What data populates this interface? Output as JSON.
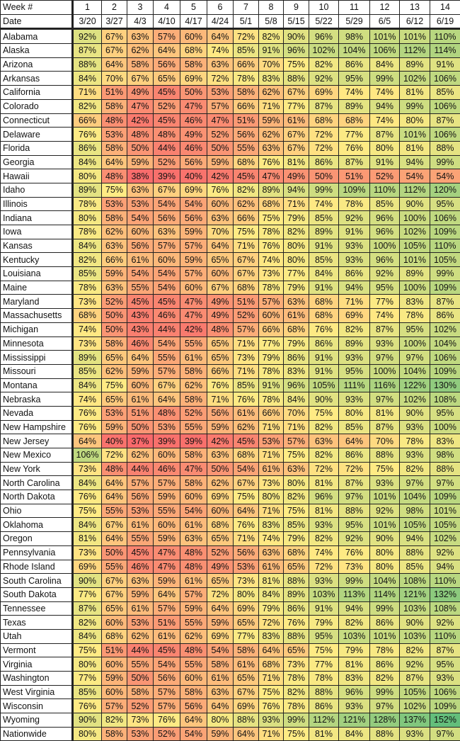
{
  "chart_data": {
    "type": "heatmap",
    "header_labels": {
      "week": "Week #",
      "date": "Date"
    },
    "weeks": [
      "1",
      "2",
      "3",
      "4",
      "5",
      "6",
      "7",
      "8",
      "9",
      "10",
      "11",
      "12",
      "13",
      "14"
    ],
    "dates": [
      "3/20",
      "3/27",
      "4/3",
      "4/10",
      "4/17",
      "4/24",
      "5/1",
      "5/8",
      "5/15",
      "5/22",
      "5/29",
      "6/5",
      "6/12",
      "6/19"
    ],
    "value_suffix": "%",
    "color_scale": {
      "min_color": "#F8696B",
      "mid_color": "#FFEB84",
      "max_color": "#63BE7B",
      "min": 37,
      "mid": 75,
      "max": 152
    },
    "rows": [
      {
        "label": "Alabama",
        "values": [
          92,
          67,
          63,
          57,
          60,
          64,
          72,
          82,
          90,
          96,
          98,
          101,
          101,
          110
        ]
      },
      {
        "label": "Alaska",
        "values": [
          87,
          67,
          62,
          64,
          68,
          74,
          85,
          91,
          96,
          102,
          104,
          106,
          112,
          114
        ]
      },
      {
        "label": "Arizona",
        "values": [
          88,
          64,
          58,
          56,
          58,
          63,
          66,
          70,
          75,
          82,
          86,
          84,
          89,
          91
        ]
      },
      {
        "label": "Arkansas",
        "values": [
          84,
          70,
          67,
          65,
          69,
          72,
          78,
          83,
          88,
          92,
          95,
          99,
          102,
          106
        ]
      },
      {
        "label": "California",
        "values": [
          71,
          51,
          49,
          45,
          50,
          53,
          58,
          62,
          67,
          69,
          74,
          74,
          81,
          85
        ]
      },
      {
        "label": "Colorado",
        "values": [
          82,
          58,
          47,
          52,
          47,
          57,
          66,
          71,
          77,
          87,
          89,
          94,
          99,
          106
        ]
      },
      {
        "label": "Connecticut",
        "values": [
          66,
          48,
          42,
          45,
          46,
          47,
          51,
          59,
          61,
          68,
          68,
          74,
          80,
          87
        ]
      },
      {
        "label": "Delaware",
        "values": [
          76,
          53,
          48,
          48,
          49,
          52,
          56,
          62,
          67,
          72,
          77,
          87,
          101,
          106
        ]
      },
      {
        "label": "Florida",
        "values": [
          86,
          58,
          50,
          44,
          46,
          50,
          55,
          63,
          67,
          72,
          76,
          80,
          81,
          88
        ]
      },
      {
        "label": "Georgia",
        "values": [
          84,
          64,
          59,
          52,
          56,
          59,
          68,
          76,
          81,
          86,
          87,
          91,
          94,
          99
        ]
      },
      {
        "label": "Hawaii",
        "values": [
          80,
          48,
          38,
          39,
          40,
          42,
          45,
          47,
          49,
          50,
          51,
          52,
          54,
          54
        ]
      },
      {
        "label": "Idaho",
        "values": [
          89,
          75,
          63,
          67,
          69,
          76,
          82,
          89,
          94,
          99,
          109,
          110,
          112,
          120
        ]
      },
      {
        "label": "Illinois",
        "values": [
          78,
          53,
          53,
          54,
          54,
          60,
          62,
          68,
          71,
          74,
          78,
          85,
          90,
          95
        ]
      },
      {
        "label": "Indiana",
        "values": [
          80,
          58,
          54,
          56,
          56,
          63,
          66,
          75,
          79,
          85,
          92,
          96,
          100,
          106
        ]
      },
      {
        "label": "Iowa",
        "values": [
          78,
          62,
          60,
          63,
          59,
          70,
          75,
          78,
          82,
          89,
          91,
          96,
          102,
          109
        ]
      },
      {
        "label": "Kansas",
        "values": [
          84,
          63,
          56,
          57,
          57,
          64,
          71,
          76,
          80,
          91,
          93,
          100,
          105,
          110
        ]
      },
      {
        "label": "Kentucky",
        "values": [
          82,
          66,
          61,
          60,
          59,
          65,
          67,
          74,
          80,
          85,
          93,
          96,
          101,
          105
        ]
      },
      {
        "label": "Louisiana",
        "values": [
          85,
          59,
          54,
          54,
          57,
          60,
          67,
          73,
          77,
          84,
          86,
          92,
          89,
          99
        ]
      },
      {
        "label": "Maine",
        "values": [
          78,
          63,
          55,
          54,
          60,
          67,
          68,
          78,
          79,
          91,
          94,
          95,
          100,
          109
        ]
      },
      {
        "label": "Maryland",
        "values": [
          73,
          52,
          45,
          45,
          47,
          49,
          51,
          57,
          63,
          68,
          71,
          77,
          83,
          87
        ]
      },
      {
        "label": "Massachusetts",
        "values": [
          68,
          50,
          43,
          46,
          47,
          49,
          52,
          60,
          61,
          68,
          69,
          74,
          78,
          86
        ]
      },
      {
        "label": "Michigan",
        "values": [
          74,
          50,
          43,
          44,
          42,
          48,
          57,
          66,
          68,
          76,
          82,
          87,
          95,
          102
        ]
      },
      {
        "label": "Minnesota",
        "values": [
          73,
          58,
          46,
          54,
          55,
          65,
          71,
          77,
          79,
          86,
          89,
          93,
          100,
          104
        ]
      },
      {
        "label": "Mississippi",
        "values": [
          89,
          65,
          64,
          55,
          61,
          65,
          73,
          79,
          86,
          91,
          93,
          97,
          97,
          106
        ]
      },
      {
        "label": "Missouri",
        "values": [
          85,
          62,
          59,
          57,
          58,
          66,
          71,
          78,
          83,
          91,
          95,
          100,
          104,
          109
        ]
      },
      {
        "label": "Montana",
        "values": [
          84,
          75,
          60,
          67,
          62,
          76,
          85,
          91,
          96,
          105,
          111,
          116,
          122,
          130
        ]
      },
      {
        "label": "Nebraska",
        "values": [
          74,
          65,
          61,
          64,
          58,
          71,
          76,
          78,
          84,
          90,
          93,
          97,
          102,
          108
        ]
      },
      {
        "label": "Nevada",
        "values": [
          76,
          53,
          51,
          48,
          52,
          56,
          61,
          66,
          70,
          75,
          80,
          81,
          90,
          95
        ]
      },
      {
        "label": "New Hampshire",
        "values": [
          76,
          59,
          50,
          53,
          55,
          59,
          62,
          71,
          71,
          82,
          85,
          87,
          93,
          100
        ]
      },
      {
        "label": "New Jersey",
        "values": [
          64,
          40,
          37,
          39,
          39,
          42,
          45,
          53,
          57,
          63,
          64,
          70,
          78,
          83
        ]
      },
      {
        "label": "New Mexico",
        "values": [
          106,
          72,
          62,
          60,
          58,
          63,
          68,
          71,
          75,
          82,
          86,
          88,
          93,
          98
        ]
      },
      {
        "label": "New York",
        "values": [
          73,
          48,
          44,
          46,
          47,
          50,
          54,
          61,
          63,
          72,
          72,
          75,
          82,
          88
        ]
      },
      {
        "label": "North Carolina",
        "values": [
          84,
          64,
          57,
          57,
          58,
          62,
          67,
          73,
          80,
          81,
          87,
          93,
          97,
          97
        ]
      },
      {
        "label": "North Dakota",
        "values": [
          76,
          64,
          56,
          59,
          60,
          69,
          75,
          80,
          82,
          96,
          97,
          101,
          104,
          109
        ]
      },
      {
        "label": "Ohio",
        "values": [
          75,
          55,
          53,
          55,
          54,
          60,
          64,
          71,
          75,
          81,
          88,
          92,
          98,
          101
        ]
      },
      {
        "label": "Oklahoma",
        "values": [
          84,
          67,
          61,
          60,
          61,
          68,
          76,
          83,
          85,
          93,
          95,
          101,
          105,
          105
        ]
      },
      {
        "label": "Oregon",
        "values": [
          81,
          64,
          55,
          59,
          63,
          65,
          71,
          74,
          79,
          82,
          92,
          90,
          94,
          102
        ]
      },
      {
        "label": "Pennsylvania",
        "values": [
          73,
          50,
          45,
          47,
          48,
          52,
          56,
          63,
          68,
          74,
          76,
          80,
          88,
          92
        ]
      },
      {
        "label": "Rhode Island",
        "values": [
          69,
          55,
          46,
          47,
          48,
          49,
          53,
          61,
          65,
          72,
          73,
          80,
          85,
          94
        ]
      },
      {
        "label": "South Carolina",
        "values": [
          90,
          67,
          63,
          59,
          61,
          65,
          73,
          81,
          88,
          93,
          99,
          104,
          108,
          110
        ]
      },
      {
        "label": "South Dakota",
        "values": [
          77,
          67,
          59,
          64,
          57,
          72,
          80,
          84,
          89,
          103,
          113,
          114,
          121,
          132
        ]
      },
      {
        "label": "Tennessee",
        "values": [
          87,
          65,
          61,
          57,
          59,
          64,
          69,
          79,
          86,
          91,
          94,
          99,
          103,
          108
        ]
      },
      {
        "label": "Texas",
        "values": [
          82,
          60,
          53,
          51,
          55,
          59,
          65,
          72,
          76,
          79,
          82,
          86,
          90,
          92
        ]
      },
      {
        "label": "Utah",
        "values": [
          84,
          68,
          62,
          61,
          62,
          69,
          77,
          83,
          88,
          95,
          103,
          101,
          103,
          110
        ]
      },
      {
        "label": "Vermont",
        "values": [
          75,
          51,
          44,
          45,
          48,
          54,
          58,
          64,
          65,
          75,
          79,
          78,
          82,
          87
        ]
      },
      {
        "label": "Virginia",
        "values": [
          80,
          60,
          55,
          54,
          55,
          58,
          61,
          68,
          73,
          77,
          81,
          86,
          92,
          95
        ]
      },
      {
        "label": "Washington",
        "values": [
          77,
          59,
          50,
          56,
          60,
          61,
          65,
          71,
          78,
          78,
          83,
          82,
          87,
          93
        ]
      },
      {
        "label": "West Virginia",
        "values": [
          85,
          60,
          58,
          57,
          58,
          63,
          67,
          75,
          82,
          88,
          96,
          99,
          105,
          106
        ]
      },
      {
        "label": "Wisconsin",
        "values": [
          76,
          57,
          52,
          57,
          56,
          64,
          69,
          76,
          78,
          86,
          93,
          97,
          102,
          109
        ]
      },
      {
        "label": "Wyoming",
        "values": [
          90,
          82,
          73,
          76,
          64,
          80,
          88,
          93,
          99,
          112,
          121,
          128,
          137,
          152
        ]
      },
      {
        "label": "Nationwide",
        "values": [
          80,
          58,
          53,
          52,
          54,
          59,
          64,
          71,
          75,
          81,
          84,
          88,
          93,
          97
        ]
      }
    ]
  }
}
